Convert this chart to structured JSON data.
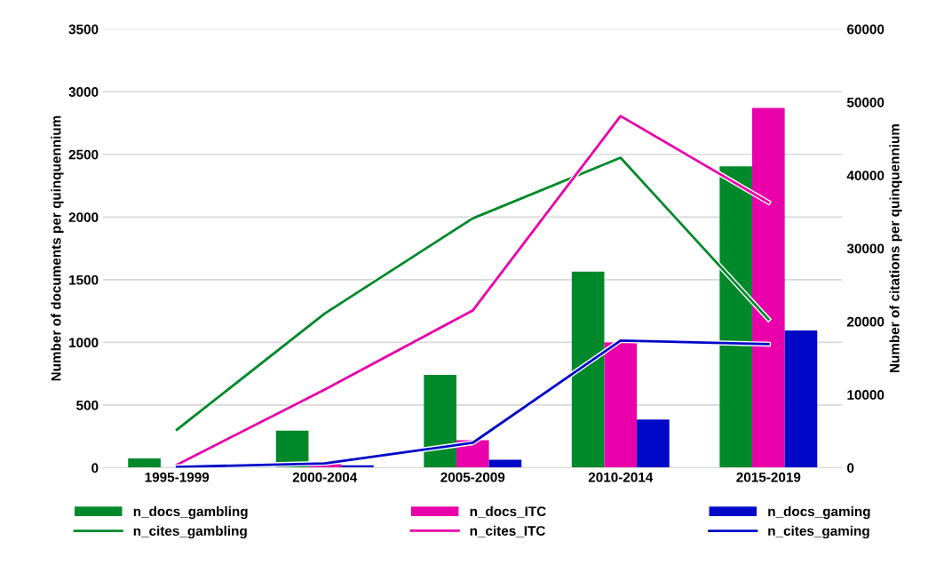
{
  "chart_data": {
    "type": "bar",
    "categories": [
      "1995-1999",
      "2000-2004",
      "2005-2009",
      "2010-2014",
      "2015-2019"
    ],
    "ylabel": "Number of documents per quinquennium",
    "y2label": "Number of citations per quinquennium",
    "ylim": [
      0,
      3500
    ],
    "yticks": [
      0,
      500,
      1000,
      1500,
      2000,
      2500,
      3000,
      3500
    ],
    "y2lim": [
      0,
      60000
    ],
    "y2ticks": [
      0,
      10000,
      20000,
      30000,
      40000,
      50000,
      60000
    ],
    "grid": "y",
    "legend": "bottom",
    "series": [
      {
        "name": "n_docs_gambling",
        "color": "#00892a",
        "values": [
          75,
          295,
          740,
          1565,
          2405
        ]
      },
      {
        "name": "n_docs_ITC",
        "color": "#ea00aa",
        "values": [
          null,
          28,
          220,
          1000,
          2870
        ]
      },
      {
        "name": "n_docs_gaming",
        "color": "#0008c8",
        "values": [
          3,
          20,
          64,
          385,
          1095
        ]
      },
      {
        "name": "n_cites_gambling",
        "type": "line",
        "axis": "y2",
        "color": "#00892a",
        "values": [
          5200,
          21100,
          34100,
          42400,
          20300
        ]
      },
      {
        "name": "n_cites_ITC",
        "type": "line",
        "axis": "y2",
        "color": "#ea00aa",
        "values": [
          400,
          10700,
          21500,
          48100,
          36300
        ]
      },
      {
        "name": "n_cites_gaming",
        "type": "line",
        "axis": "y2",
        "color": "#0008c8",
        "values": [
          100,
          600,
          3400,
          17400,
          16900
        ]
      }
    ]
  }
}
